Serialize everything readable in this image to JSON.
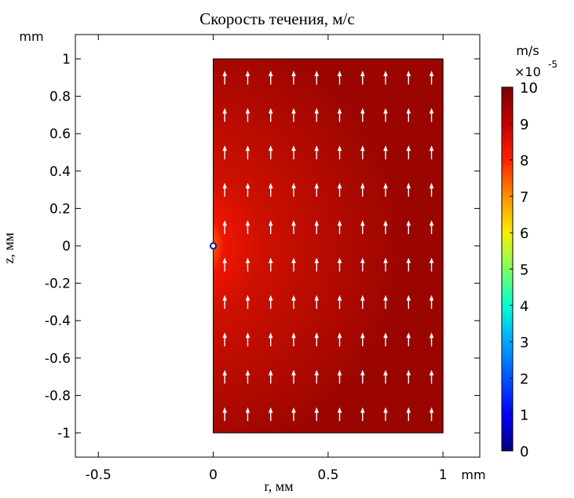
{
  "chart_data": {
    "type": "heatmap",
    "title": "Скорость течения, м/с",
    "xlabel": "r, мм",
    "ylabel": "z, мм",
    "x_unit": "mm",
    "y_unit": "mm",
    "xlim": [
      -0.6,
      1.16
    ],
    "ylim": [
      -1.13,
      1.13
    ],
    "x_ticks": [
      "-0.5",
      "0",
      "0.5",
      "1"
    ],
    "x_tick_values": [
      -0.5,
      0,
      0.5,
      1
    ],
    "y_ticks": [
      "1",
      "0.8",
      "0.6",
      "0.4",
      "0.2",
      "0",
      "-0.2",
      "-0.4",
      "-0.6",
      "-0.8",
      "-1"
    ],
    "y_tick_values": [
      1,
      0.8,
      0.6,
      0.4,
      0.2,
      0,
      -0.2,
      -0.4,
      -0.6,
      -0.8,
      -1
    ],
    "domain": {
      "r": [
        0,
        1
      ],
      "z": [
        -1,
        1
      ]
    },
    "free_stream_value": 10,
    "source_point": {
      "r": 0,
      "z": 0,
      "value": 0
    },
    "arrows": {
      "direction": "up",
      "color": "#ffffff",
      "r_values": [
        0.05,
        0.15,
        0.25,
        0.35,
        0.45,
        0.55,
        0.65,
        0.75,
        0.85,
        0.95
      ],
      "z_values": [
        0.9,
        0.7,
        0.5,
        0.3,
        0.1,
        -0.1,
        -0.3,
        -0.5,
        -0.7,
        -0.9
      ]
    },
    "colorbar": {
      "unit": "m/s",
      "multiplier": "×10",
      "exponent": "-5",
      "min": 0,
      "max": 10,
      "ticks": [
        "10",
        "9",
        "8",
        "7",
        "6",
        "5",
        "4",
        "3",
        "2",
        "1",
        "0"
      ],
      "tick_values": [
        10,
        9,
        8,
        7,
        6,
        5,
        4,
        3,
        2,
        1,
        0
      ],
      "colormap": "rainbow"
    }
  }
}
